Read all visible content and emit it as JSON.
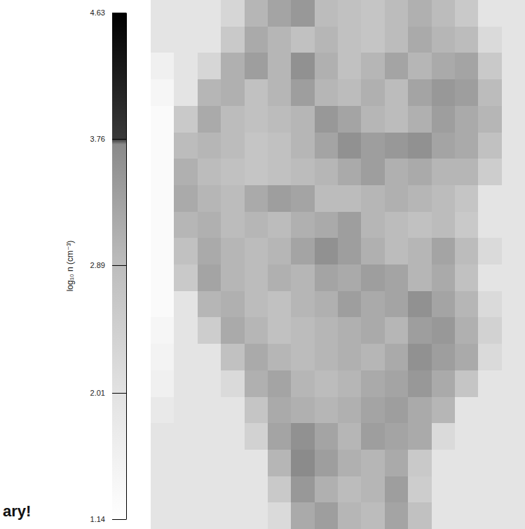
{
  "chart_data": {
    "type": "heatmap",
    "tick_labels": false,
    "annotation": "ary!",
    "colorbar": {
      "label": "log₁₀ n (cm⁻³)",
      "range": [
        1.14,
        4.63
      ],
      "ticks": [
        1.14,
        2.01,
        2.89,
        3.76,
        4.63
      ]
    },
    "z": [
      [
        1.95,
        1.95,
        1.95,
        2.3,
        3.0,
        3.3,
        3.5,
        2.9,
        2.8,
        2.7,
        2.9,
        3.1,
        2.9,
        2.6,
        1.95,
        1.95
      ],
      [
        1.95,
        1.95,
        1.95,
        2.6,
        3.2,
        3.0,
        2.8,
        3.0,
        2.8,
        2.7,
        2.9,
        3.2,
        3.0,
        2.9,
        2.2,
        1.95
      ],
      [
        1.6,
        1.95,
        2.3,
        3.1,
        3.4,
        3.0,
        3.6,
        3.1,
        2.8,
        3.0,
        3.3,
        3.0,
        3.2,
        3.3,
        2.6,
        1.95
      ],
      [
        1.4,
        1.95,
        3.0,
        3.1,
        2.8,
        3.0,
        3.4,
        3.0,
        2.9,
        3.1,
        2.9,
        3.3,
        3.5,
        3.4,
        2.9,
        1.95
      ],
      [
        1.3,
        2.6,
        3.2,
        2.9,
        2.8,
        2.9,
        3.0,
        3.5,
        3.3,
        3.0,
        2.9,
        3.1,
        3.4,
        3.2,
        3.0,
        1.95
      ],
      [
        1.3,
        2.9,
        3.0,
        2.9,
        2.7,
        2.8,
        3.0,
        3.3,
        3.6,
        3.4,
        3.5,
        3.6,
        3.3,
        3.2,
        2.8,
        1.95
      ],
      [
        1.3,
        3.1,
        2.9,
        2.8,
        2.7,
        2.8,
        2.9,
        3.0,
        3.2,
        3.4,
        3.1,
        3.2,
        3.0,
        3.0,
        2.5,
        1.95
      ],
      [
        1.3,
        3.2,
        3.0,
        2.9,
        3.2,
        3.4,
        3.3,
        2.9,
        2.9,
        3.0,
        3.1,
        3.0,
        2.9,
        2.7,
        1.95,
        1.95
      ],
      [
        1.3,
        3.0,
        3.1,
        2.9,
        3.0,
        2.9,
        3.1,
        3.2,
        3.4,
        3.0,
        2.9,
        2.8,
        2.9,
        2.6,
        1.95,
        1.95
      ],
      [
        1.3,
        2.8,
        3.2,
        3.0,
        2.9,
        3.0,
        3.3,
        3.6,
        3.4,
        3.1,
        2.9,
        3.0,
        3.3,
        2.9,
        2.2,
        1.95
      ],
      [
        1.3,
        2.6,
        3.3,
        3.0,
        2.9,
        3.1,
        3.0,
        3.3,
        3.2,
        3.4,
        3.3,
        3.0,
        3.2,
        2.8,
        1.95,
        1.95
      ],
      [
        1.3,
        1.95,
        3.0,
        3.1,
        2.9,
        2.8,
        3.0,
        3.1,
        3.4,
        3.2,
        3.3,
        3.6,
        3.3,
        3.0,
        2.2,
        1.95
      ],
      [
        1.4,
        1.95,
        2.5,
        3.2,
        3.0,
        2.8,
        2.9,
        3.0,
        3.1,
        3.2,
        3.0,
        3.4,
        3.5,
        3.1,
        2.4,
        1.95
      ],
      [
        1.5,
        1.95,
        1.95,
        2.8,
        3.2,
        3.0,
        2.9,
        3.0,
        3.1,
        3.0,
        3.2,
        3.6,
        3.4,
        3.2,
        2.2,
        1.95
      ],
      [
        1.6,
        1.95,
        1.95,
        2.2,
        3.1,
        3.3,
        3.0,
        2.9,
        3.0,
        3.2,
        3.3,
        3.5,
        3.2,
        2.7,
        1.95,
        1.95
      ],
      [
        1.8,
        1.95,
        1.95,
        1.95,
        2.7,
        3.2,
        3.1,
        3.0,
        3.1,
        3.3,
        3.4,
        3.2,
        3.0,
        1.95,
        1.95,
        1.95
      ],
      [
        1.95,
        1.95,
        1.95,
        1.95,
        2.4,
        3.3,
        3.6,
        3.3,
        3.0,
        3.4,
        3.3,
        3.2,
        2.2,
        1.95,
        1.95,
        1.95
      ],
      [
        1.95,
        1.95,
        1.95,
        1.95,
        1.95,
        3.0,
        3.7,
        3.4,
        3.1,
        3.0,
        3.2,
        2.6,
        1.95,
        1.95,
        1.95,
        1.95
      ],
      [
        1.95,
        1.95,
        1.95,
        1.95,
        1.95,
        2.6,
        3.5,
        3.1,
        2.9,
        3.0,
        3.4,
        2.5,
        1.95,
        1.95,
        1.95,
        1.95
      ],
      [
        1.95,
        1.95,
        1.95,
        1.95,
        1.95,
        2.2,
        3.2,
        3.4,
        3.0,
        2.9,
        3.3,
        2.8,
        1.95,
        1.95,
        1.95,
        1.95
      ]
    ]
  }
}
